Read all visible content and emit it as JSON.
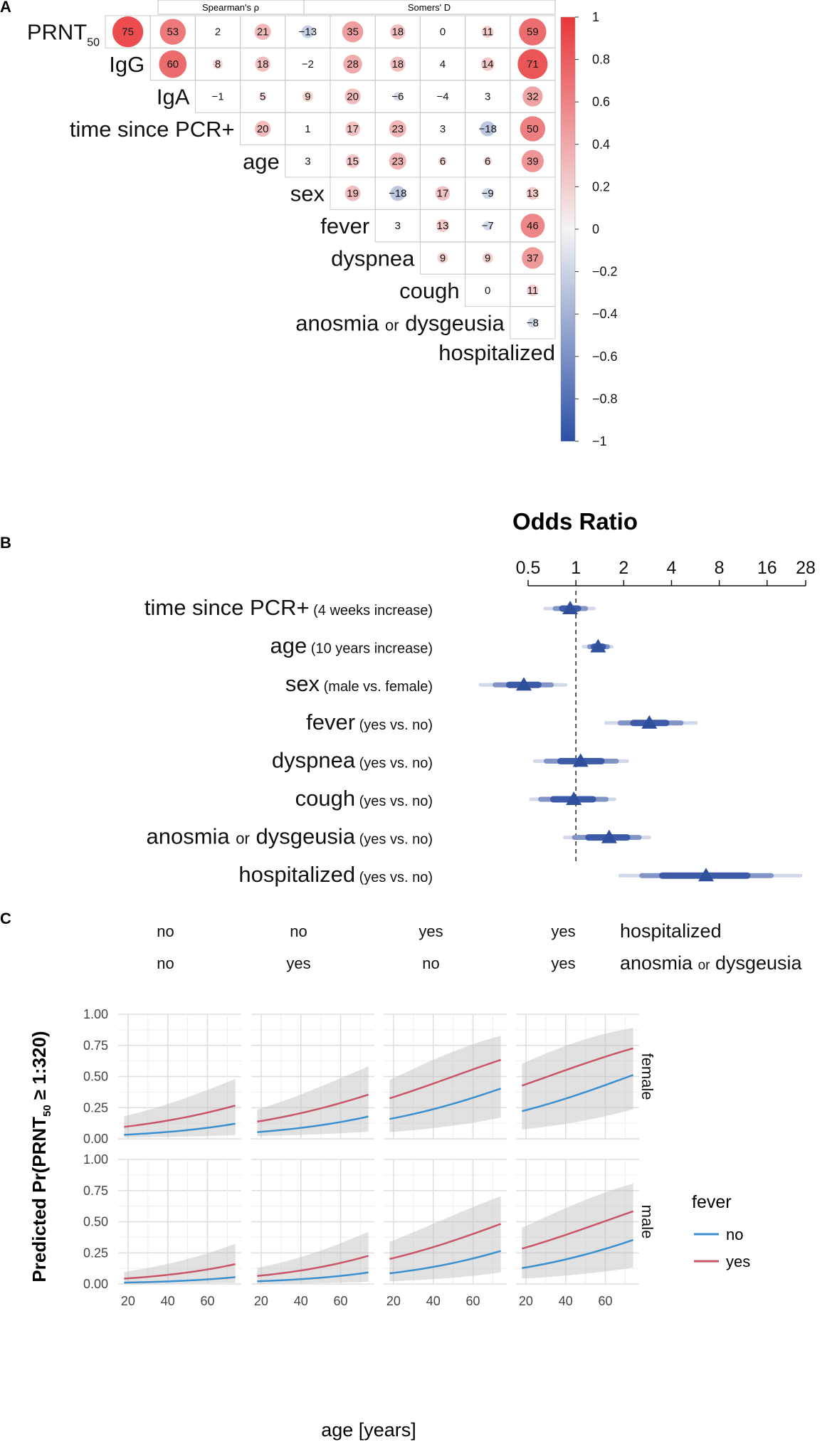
{
  "panel_labels": {
    "a": "A",
    "b": "B",
    "c": "C"
  },
  "colors": {
    "negative": "#2a4fa5",
    "positive": "#e8373a",
    "or_point": "#2f4e9c",
    "fever_no": "#3a8fcf",
    "fever_yes": "#c9556a",
    "grid": "#e0e0e0",
    "panel_bg": "#ebebeb"
  },
  "chart_data": [
    {
      "type": "heatmap",
      "panel": "A",
      "header_left": "Spearman's ρ",
      "header_right": "Somers' D",
      "row_labels": [
        {
          "text": "PRNT",
          "sub": "50"
        },
        {
          "text": "IgG"
        },
        {
          "text": "IgA"
        },
        {
          "text": "time since PCR+"
        },
        {
          "text": "age"
        },
        {
          "text": "sex"
        },
        {
          "text": "fever"
        },
        {
          "text": "dyspnea"
        },
        {
          "text": "cough"
        },
        {
          "text": "anosmia ",
          "small": "or",
          "rest": " dysgeusia"
        },
        {
          "text": "hospitalized"
        }
      ],
      "rows": [
        [
          75,
          53,
          2,
          21,
          -13,
          35,
          18,
          0,
          11,
          59
        ],
        [
          60,
          8,
          18,
          -2,
          28,
          18,
          4,
          14,
          71
        ],
        [
          -1,
          5,
          9,
          20,
          -6,
          -4,
          3,
          32
        ],
        [
          20,
          1,
          17,
          23,
          3,
          -18,
          50
        ],
        [
          3,
          15,
          23,
          6,
          6,
          39
        ],
        [
          19,
          -18,
          17,
          -9,
          13
        ],
        [
          3,
          13,
          -7,
          46
        ],
        [
          9,
          9,
          37
        ],
        [
          0,
          11
        ],
        [
          -8
        ]
      ],
      "colorbar": {
        "min": -1,
        "max": 1,
        "ticks": [
          "1",
          "0.8",
          "0.6",
          "0.4",
          "0.2",
          "0",
          "−0.2",
          "−0.4",
          "−0.6",
          "−0.8",
          "−1"
        ]
      }
    },
    {
      "type": "scatter",
      "panel": "B",
      "title": "Odds Ratio",
      "axis_ticks": [
        "0.5",
        "1",
        "2",
        "4",
        "8",
        "16",
        "28"
      ],
      "axis_tick_values": [
        0.5,
        1,
        2,
        4,
        8,
        16,
        28
      ],
      "reference_line": 1,
      "predictors": [
        {
          "label": "time since PCR+",
          "detail": "(4 weeks increase)",
          "or": 0.92,
          "ci50": [
            0.82,
            1.03
          ],
          "ci80": [
            0.74,
            1.15
          ],
          "ci95": [
            0.64,
            1.3
          ]
        },
        {
          "label": "age",
          "detail": "(10 years increase)",
          "or": 1.38,
          "ci50": [
            1.3,
            1.48
          ],
          "ci80": [
            1.22,
            1.58
          ],
          "ci95": [
            1.12,
            1.68
          ]
        },
        {
          "label": "sex",
          "detail": "(male vs. female)",
          "or": 0.47,
          "ci50": [
            0.38,
            0.58
          ],
          "ci80": [
            0.31,
            0.7
          ],
          "ci95": [
            0.25,
            0.86
          ]
        },
        {
          "label": "fever",
          "detail": "(yes vs. no)",
          "or": 2.9,
          "ci50": [
            2.3,
            3.7
          ],
          "ci80": [
            1.9,
            4.6
          ],
          "ci95": [
            1.55,
            5.7
          ]
        },
        {
          "label": "dyspnea",
          "detail": "(yes vs. no)",
          "or": 1.07,
          "ci50": [
            0.8,
            1.45
          ],
          "ci80": [
            0.65,
            1.8
          ],
          "ci95": [
            0.55,
            2.1
          ]
        },
        {
          "label": "cough",
          "detail": "(yes vs. no)",
          "or": 0.97,
          "ci50": [
            0.72,
            1.28
          ],
          "ci80": [
            0.6,
            1.55
          ],
          "ci95": [
            0.52,
            1.75
          ]
        },
        {
          "label": "anosmia ",
          "small": "or",
          "rest": " dysgeusia",
          "detail": "(yes vs. no)",
          "or": 1.62,
          "ci50": [
            1.2,
            2.1
          ],
          "ci80": [
            0.98,
            2.5
          ],
          "ci95": [
            0.85,
            2.9
          ]
        },
        {
          "label": "hospitalized",
          "detail": "(yes vs. no)",
          "or": 6.6,
          "ci50": [
            3.5,
            12.0
          ],
          "ci80": [
            2.6,
            17.0
          ],
          "ci95": [
            1.9,
            26.0
          ]
        }
      ]
    },
    {
      "type": "line",
      "panel": "C",
      "xlabel": "age [years]",
      "ylabel_pre": "Predicted Pr(PRNT",
      "ylabel_sub": "50",
      "ylabel_post": " ≥ 1:320)",
      "x_range": [
        15,
        77
      ],
      "x_ticks": [
        20,
        40,
        60
      ],
      "ylim": [
        0,
        1
      ],
      "y_ticks": [
        0,
        0.25,
        0.5,
        0.75,
        1.0
      ],
      "y_tick_labels": [
        "0.00",
        "0.25",
        "0.50",
        "0.75",
        "1.00"
      ],
      "column_header_rows": [
        {
          "name": "hospitalized",
          "values": [
            "no",
            "no",
            "yes",
            "yes"
          ]
        },
        {
          "name_pre": "anosmia ",
          "name_small": "or",
          "name_post": " dysgeusia",
          "values": [
            "no",
            "yes",
            "no",
            "yes"
          ]
        }
      ],
      "row_strips": [
        "female",
        "male"
      ],
      "legend": {
        "title": "fever",
        "entries": [
          "no",
          "yes"
        ]
      },
      "facets": [
        {
          "row": 0,
          "col": 0,
          "no": [
            0.03,
            0.13
          ],
          "yes": [
            0.09,
            0.28
          ],
          "band_lo": [
            0.01,
            0.03
          ],
          "band_hi": [
            0.17,
            0.5
          ]
        },
        {
          "row": 0,
          "col": 1,
          "no": [
            0.05,
            0.19
          ],
          "yes": [
            0.13,
            0.37
          ],
          "band_lo": [
            0.02,
            0.06
          ],
          "band_hi": [
            0.22,
            0.6
          ]
        },
        {
          "row": 0,
          "col": 2,
          "no": [
            0.15,
            0.42
          ],
          "yes": [
            0.31,
            0.65
          ],
          "band_lo": [
            0.05,
            0.18
          ],
          "band_hi": [
            0.45,
            0.84
          ]
        },
        {
          "row": 0,
          "col": 3,
          "no": [
            0.21,
            0.53
          ],
          "yes": [
            0.41,
            0.74
          ],
          "band_lo": [
            0.07,
            0.25
          ],
          "band_hi": [
            0.58,
            0.9
          ]
        },
        {
          "row": 1,
          "col": 0,
          "no": [
            0.01,
            0.06
          ],
          "yes": [
            0.04,
            0.17
          ],
          "band_lo": [
            0.0,
            0.01
          ],
          "band_hi": [
            0.09,
            0.34
          ]
        },
        {
          "row": 1,
          "col": 1,
          "no": [
            0.02,
            0.1
          ],
          "yes": [
            0.06,
            0.24
          ],
          "band_lo": [
            0.0,
            0.02
          ],
          "band_hi": [
            0.12,
            0.44
          ]
        },
        {
          "row": 1,
          "col": 2,
          "no": [
            0.08,
            0.28
          ],
          "yes": [
            0.19,
            0.5
          ],
          "band_lo": [
            0.02,
            0.1
          ],
          "band_hi": [
            0.32,
            0.72
          ]
        },
        {
          "row": 1,
          "col": 3,
          "no": [
            0.12,
            0.37
          ],
          "yes": [
            0.27,
            0.6
          ],
          "band_lo": [
            0.04,
            0.14
          ],
          "band_hi": [
            0.43,
            0.82
          ]
        }
      ]
    }
  ]
}
